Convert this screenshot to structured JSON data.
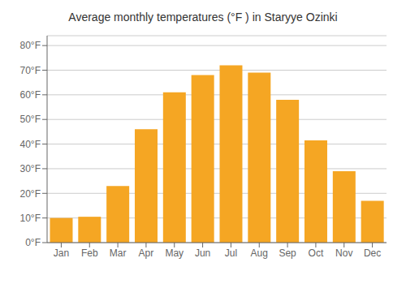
{
  "chart_data": {
    "type": "bar",
    "title": "Average monthly temperatures (°F ) in Staryye Ozinki",
    "categories": [
      "Jan",
      "Feb",
      "Mar",
      "Apr",
      "May",
      "Jun",
      "Jul",
      "Aug",
      "Sep",
      "Oct",
      "Nov",
      "Dec"
    ],
    "values": [
      10,
      10.5,
      23,
      46,
      61,
      68,
      72,
      69,
      58,
      41.5,
      29,
      17
    ],
    "color": "#F5A623",
    "ylim": [
      0,
      84
    ],
    "yticks": [
      {
        "value": 0,
        "label": "0°F"
      },
      {
        "value": 10,
        "label": "10°F"
      },
      {
        "value": 20,
        "label": "20°F"
      },
      {
        "value": 30,
        "label": "30°F"
      },
      {
        "value": 40,
        "label": "40°F"
      },
      {
        "value": 50,
        "label": "50°F"
      },
      {
        "value": 60,
        "label": "60°F"
      },
      {
        "value": 70,
        "label": "70°F"
      },
      {
        "value": 80,
        "label": "80°F"
      }
    ],
    "grid": true
  }
}
